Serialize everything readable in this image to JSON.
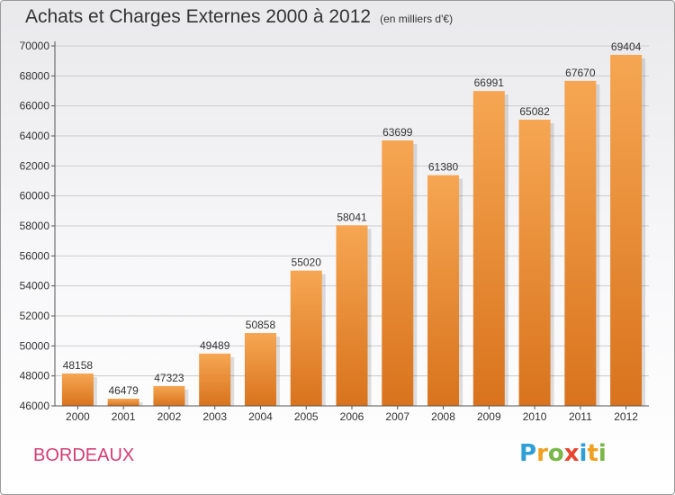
{
  "title": "Achats et Charges Externes 2000 à 2012",
  "subtitle": "(en milliers d'€)",
  "city": "BORDEAUX",
  "logo": {
    "letters": [
      "P",
      "r",
      "o",
      "x",
      "i",
      "t",
      "i"
    ],
    "colors": [
      "#2f9fd8",
      "#f0a020",
      "#7ab648",
      "#e8432d",
      "#2f9fd8",
      "#f0a020",
      "#7ab648"
    ]
  },
  "colors": {
    "bar_top": "#f6a652",
    "bar_bottom": "#d9731d",
    "city": "#d63c73",
    "grid": "#cccccc"
  },
  "chart_data": {
    "type": "bar",
    "title": "Achats et Charges Externes 2000 à 2012",
    "subtitle": "(en milliers d'€)",
    "categories": [
      "2000",
      "2001",
      "2002",
      "2003",
      "2004",
      "2005",
      "2006",
      "2007",
      "2008",
      "2009",
      "2010",
      "2011",
      "2012"
    ],
    "values": [
      48158,
      46479,
      47323,
      49489,
      50858,
      55020,
      58041,
      63699,
      61380,
      66991,
      65082,
      67670,
      69404
    ],
    "ylim": [
      46000,
      70000
    ],
    "yticks": [
      46000,
      48000,
      50000,
      52000,
      54000,
      56000,
      58000,
      60000,
      62000,
      64000,
      66000,
      68000,
      70000
    ],
    "grid": true
  }
}
